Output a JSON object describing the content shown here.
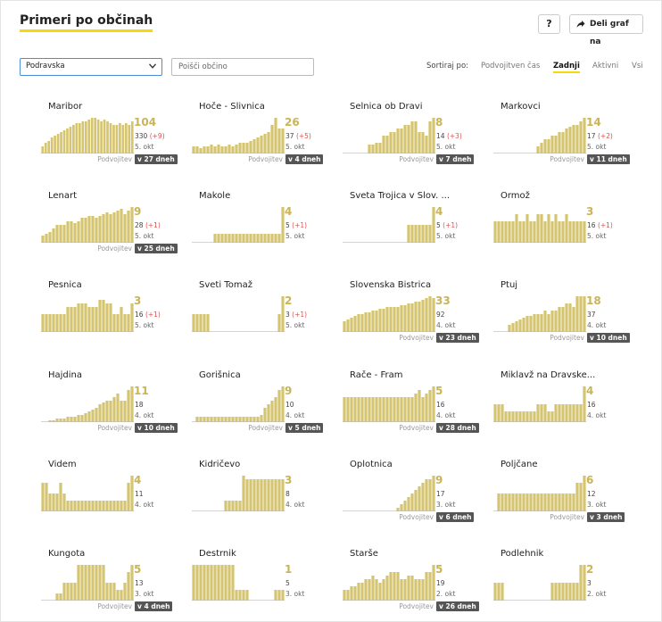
{
  "header": {
    "title": "Primeri po občinah",
    "help_label": "?",
    "share_label": "Deli graf na"
  },
  "filters": {
    "region_value": "Podravska",
    "search_placeholder": "Poišči občino"
  },
  "sort": {
    "label": "Sortiraj po:",
    "options": [
      "Podvojitven čas",
      "Zadnji",
      "Aktivni",
      "Vsi"
    ],
    "active": "Zadnji"
  },
  "colors": {
    "bar": "#d5c470",
    "accent_underline": "#f5d90a",
    "delta": "#d9534f",
    "badge": "#555555"
  },
  "cards": [
    {
      "name": "Maribor",
      "latest": "104",
      "total": "330",
      "delta": "(+9)",
      "date": "5. okt",
      "doubling_label": "Podvojitev",
      "doubling": "v 27 dneh",
      "bars": [
        0.2,
        0.3,
        0.35,
        0.45,
        0.5,
        0.55,
        0.6,
        0.65,
        0.7,
        0.75,
        0.8,
        0.85,
        0.85,
        0.9,
        0.9,
        0.95,
        1,
        1,
        0.95,
        0.9,
        0.95,
        0.9,
        0.85,
        0.8,
        0.8,
        0.85,
        0.8,
        0.85,
        0.8,
        0.9
      ]
    },
    {
      "name": "Hoče - Slivnica",
      "latest": "26",
      "total": "37",
      "delta": "(+5)",
      "date": "5. okt",
      "doubling_label": "Podvojitev",
      "doubling": "v 4 dneh",
      "bars": [
        0.2,
        0.2,
        0.15,
        0.2,
        0.2,
        0.25,
        0.2,
        0.25,
        0.2,
        0.2,
        0.25,
        0.2,
        0.25,
        0.3,
        0.3,
        0.3,
        0.35,
        0.4,
        0.45,
        0.5,
        0.55,
        0.6,
        0.8,
        1,
        0.7,
        0.7
      ]
    },
    {
      "name": "Selnica ob Dravi",
      "latest": "8",
      "total": "14",
      "delta": "(+3)",
      "date": "5. okt",
      "doubling_label": "Podvojitev",
      "doubling": "v 7 dneh",
      "bars": [
        0,
        0,
        0,
        0,
        0,
        0,
        0,
        0.25,
        0.25,
        0.3,
        0.3,
        0.5,
        0.5,
        0.6,
        0.6,
        0.7,
        0.7,
        0.8,
        0.8,
        0.9,
        0.9,
        0.6,
        0.6,
        0.5,
        0.9,
        1
      ]
    },
    {
      "name": "Markovci",
      "latest": "14",
      "total": "17",
      "delta": "(+2)",
      "date": "5. okt",
      "doubling_label": "Podvojitev",
      "doubling": "v 11 dneh",
      "bars": [
        0,
        0,
        0,
        0,
        0,
        0,
        0,
        0,
        0,
        0,
        0,
        0,
        0.2,
        0.3,
        0.4,
        0.4,
        0.5,
        0.5,
        0.6,
        0.6,
        0.7,
        0.75,
        0.8,
        0.8,
        0.9,
        1
      ]
    },
    {
      "name": "Lenart",
      "latest": "9",
      "total": "28",
      "delta": "(+1)",
      "date": "5. okt",
      "doubling_label": "Podvojitev",
      "doubling": "v 25 dneh",
      "bars": [
        0.2,
        0.25,
        0.3,
        0.4,
        0.5,
        0.5,
        0.5,
        0.6,
        0.6,
        0.55,
        0.6,
        0.7,
        0.7,
        0.75,
        0.75,
        0.7,
        0.75,
        0.8,
        0.85,
        0.8,
        0.85,
        0.9,
        0.95,
        0.8,
        0.9,
        1
      ]
    },
    {
      "name": "Makole",
      "latest": "4",
      "total": "5",
      "delta": "(+1)",
      "date": "5. okt",
      "doubling_label": "",
      "doubling": "",
      "bars": [
        0,
        0,
        0,
        0,
        0,
        0,
        0.25,
        0.25,
        0.25,
        0.25,
        0.25,
        0.25,
        0.25,
        0.25,
        0.25,
        0.25,
        0.25,
        0.25,
        0.25,
        0.25,
        0.25,
        0.25,
        0.25,
        0.25,
        0.25,
        1
      ]
    },
    {
      "name": "Sveta Trojica v Slov. ...",
      "latest": "4",
      "total": "5",
      "delta": "(+1)",
      "date": "5. okt",
      "doubling_label": "",
      "doubling": "",
      "bars": [
        0,
        0,
        0,
        0,
        0,
        0,
        0,
        0,
        0,
        0,
        0,
        0,
        0,
        0,
        0,
        0,
        0,
        0,
        0.5,
        0.5,
        0.5,
        0.5,
        0.5,
        0.5,
        0.5,
        1
      ]
    },
    {
      "name": "Ormož",
      "latest": "3",
      "total": "16",
      "delta": "(+1)",
      "date": "5. okt",
      "doubling_label": "",
      "doubling": "",
      "bars": [
        0.6,
        0.6,
        0.6,
        0.6,
        0.6,
        0.6,
        0.8,
        0.6,
        0.6,
        0.8,
        0.6,
        0.6,
        0.8,
        0.8,
        0.6,
        0.8,
        0.6,
        0.8,
        0.6,
        0.6,
        0.8,
        0.6,
        0.6,
        0.6,
        0.6,
        0.6
      ]
    },
    {
      "name": "Pesnica",
      "latest": "3",
      "total": "16",
      "delta": "(+1)",
      "date": "5. okt",
      "doubling_label": "",
      "doubling": "",
      "bars": [
        0.5,
        0.5,
        0.5,
        0.5,
        0.5,
        0.5,
        0.5,
        0.7,
        0.7,
        0.7,
        0.8,
        0.8,
        0.8,
        0.7,
        0.7,
        0.7,
        0.9,
        0.9,
        0.8,
        0.8,
        0.5,
        0.5,
        0.7,
        0.5,
        0.5,
        0.8
      ]
    },
    {
      "name": "Sveti Tomaž",
      "latest": "2",
      "total": "3",
      "delta": "(+1)",
      "date": "5. okt",
      "doubling_label": "",
      "doubling": "",
      "bars": [
        0.5,
        0.5,
        0.5,
        0.5,
        0.5,
        0,
        0,
        0,
        0,
        0,
        0,
        0,
        0,
        0,
        0,
        0,
        0,
        0,
        0,
        0,
        0,
        0,
        0,
        0,
        0.5,
        1
      ]
    },
    {
      "name": "Slovenska Bistrica",
      "latest": "33",
      "total": "92",
      "delta": "",
      "date": "4. okt",
      "doubling_label": "Podvojitev",
      "doubling": "v 23 dneh",
      "bars": [
        0.3,
        0.35,
        0.4,
        0.45,
        0.5,
        0.5,
        0.55,
        0.55,
        0.6,
        0.6,
        0.65,
        0.65,
        0.7,
        0.7,
        0.7,
        0.7,
        0.75,
        0.75,
        0.8,
        0.8,
        0.85,
        0.85,
        0.9,
        0.95,
        1,
        0.95
      ]
    },
    {
      "name": "Ptuj",
      "latest": "18",
      "total": "37",
      "delta": "",
      "date": "4. okt",
      "doubling_label": "Podvojitev",
      "doubling": "v 10 dneh",
      "bars": [
        0,
        0,
        0,
        0,
        0.2,
        0.25,
        0.3,
        0.35,
        0.4,
        0.45,
        0.45,
        0.5,
        0.5,
        0.5,
        0.6,
        0.5,
        0.6,
        0.6,
        0.7,
        0.7,
        0.8,
        0.8,
        0.7,
        1,
        1,
        1
      ]
    },
    {
      "name": "Hajdina",
      "latest": "11",
      "total": "18",
      "delta": "",
      "date": "4. okt",
      "doubling_label": "Podvojitev",
      "doubling": "v 10 dneh",
      "bars": [
        0,
        0,
        0.05,
        0.05,
        0.1,
        0.1,
        0.1,
        0.15,
        0.15,
        0.15,
        0.2,
        0.2,
        0.25,
        0.3,
        0.35,
        0.4,
        0.5,
        0.55,
        0.6,
        0.6,
        0.7,
        0.8,
        0.6,
        0.6,
        0.9,
        1
      ]
    },
    {
      "name": "Gorišnica",
      "latest": "9",
      "total": "10",
      "delta": "",
      "date": "4. okt",
      "doubling_label": "Podvojitev",
      "doubling": "v 5 dneh",
      "bars": [
        0,
        0.15,
        0.15,
        0.15,
        0.15,
        0.15,
        0.15,
        0.15,
        0.15,
        0.15,
        0.15,
        0.15,
        0.15,
        0.15,
        0.15,
        0.15,
        0.15,
        0.15,
        0.15,
        0.2,
        0.4,
        0.5,
        0.6,
        0.7,
        0.9,
        1
      ]
    },
    {
      "name": "Rače - Fram",
      "latest": "5",
      "total": "16",
      "delta": "",
      "date": "4. okt",
      "doubling_label": "Podvojitev",
      "doubling": "v 28 dneh",
      "bars": [
        0.7,
        0.7,
        0.7,
        0.7,
        0.7,
        0.7,
        0.7,
        0.7,
        0.7,
        0.7,
        0.7,
        0.7,
        0.7,
        0.7,
        0.7,
        0.7,
        0.7,
        0.7,
        0.7,
        0.7,
        0.8,
        0.9,
        0.7,
        0.8,
        0.9,
        1
      ]
    },
    {
      "name": "Miklavž na Dravske...",
      "latest": "4",
      "total": "16",
      "delta": "",
      "date": "4. okt",
      "doubling_label": "",
      "doubling": "",
      "bars": [
        0.5,
        0.5,
        0.5,
        0.3,
        0.3,
        0.3,
        0.3,
        0.3,
        0.3,
        0.3,
        0.3,
        0.3,
        0.5,
        0.5,
        0.5,
        0.3,
        0.3,
        0.5,
        0.5,
        0.5,
        0.5,
        0.5,
        0.5,
        0.5,
        0.5,
        1
      ]
    },
    {
      "name": "Videm",
      "latest": "4",
      "total": "11",
      "delta": "",
      "date": "4. okt",
      "doubling_label": "",
      "doubling": "",
      "bars": [
        0.8,
        0.8,
        0.5,
        0.5,
        0.5,
        0.8,
        0.5,
        0.3,
        0.3,
        0.3,
        0.3,
        0.3,
        0.3,
        0.3,
        0.3,
        0.3,
        0.3,
        0.3,
        0.3,
        0.3,
        0.3,
        0.3,
        0.3,
        0.3,
        0.8,
        1
      ]
    },
    {
      "name": "Kidričevo",
      "latest": "3",
      "total": "8",
      "delta": "",
      "date": "4. okt",
      "doubling_label": "",
      "doubling": "",
      "bars": [
        0,
        0,
        0,
        0,
        0,
        0,
        0,
        0,
        0,
        0.3,
        0.3,
        0.3,
        0.3,
        0.3,
        1,
        0.9,
        0.9,
        0.9,
        0.9,
        0.9,
        0.9,
        0.9,
        0.9,
        0.9,
        0.9,
        0.9
      ]
    },
    {
      "name": "Oplotnica",
      "latest": "9",
      "total": "17",
      "delta": "",
      "date": "3. okt",
      "doubling_label": "Podvojitev",
      "doubling": "v 6 dneh",
      "bars": [
        0,
        0,
        0,
        0,
        0,
        0,
        0,
        0,
        0,
        0,
        0,
        0,
        0,
        0,
        0,
        0.1,
        0.2,
        0.3,
        0.4,
        0.5,
        0.6,
        0.7,
        0.8,
        0.9,
        0.9,
        1
      ]
    },
    {
      "name": "Poljčane",
      "latest": "6",
      "total": "12",
      "delta": "",
      "date": "3. okt",
      "doubling_label": "Podvojitev",
      "doubling": "v 3 dneh",
      "bars": [
        0,
        0.5,
        0.5,
        0.5,
        0.5,
        0.5,
        0.5,
        0.5,
        0.5,
        0.5,
        0.5,
        0.5,
        0.5,
        0.5,
        0.5,
        0.5,
        0.5,
        0.5,
        0.5,
        0.5,
        0.5,
        0.5,
        0.5,
        0.8,
        0.8,
        1
      ]
    },
    {
      "name": "Kungota",
      "latest": "5",
      "total": "13",
      "delta": "",
      "date": "3. okt",
      "doubling_label": "Podvojitev",
      "doubling": "v 4 dneh",
      "bars": [
        0,
        0,
        0,
        0,
        0.2,
        0.2,
        0.5,
        0.5,
        0.5,
        0.5,
        1,
        1,
        1,
        1,
        1,
        1,
        1,
        1,
        0.5,
        0.5,
        0.5,
        0.3,
        0.3,
        0.5,
        0.8,
        1
      ]
    },
    {
      "name": "Destrnik",
      "latest": "1",
      "total": "5",
      "delta": "",
      "date": "3. okt",
      "doubling_label": "",
      "doubling": "",
      "bars": [
        1,
        1,
        1,
        1,
        1,
        1,
        1,
        1,
        1,
        1,
        1,
        1,
        0.3,
        0.3,
        0.3,
        0.3,
        0,
        0,
        0,
        0,
        0,
        0,
        0,
        0.3,
        0.3,
        0.3
      ]
    },
    {
      "name": "Starše",
      "latest": "5",
      "total": "19",
      "delta": "",
      "date": "2. okt",
      "doubling_label": "Podvojitev",
      "doubling": "v 26 dneh",
      "bars": [
        0.3,
        0.3,
        0.4,
        0.4,
        0.5,
        0.5,
        0.6,
        0.6,
        0.7,
        0.6,
        0.5,
        0.6,
        0.7,
        0.8,
        0.8,
        0.8,
        0.6,
        0.6,
        0.7,
        0.7,
        0.6,
        0.6,
        0.6,
        0.8,
        0.8,
        1
      ]
    },
    {
      "name": "Podlehnik",
      "latest": "2",
      "total": "3",
      "delta": "",
      "date": "2. okt",
      "doubling_label": "",
      "doubling": "",
      "bars": [
        0.5,
        0.5,
        0.5,
        0,
        0,
        0,
        0,
        0,
        0,
        0,
        0,
        0,
        0,
        0,
        0,
        0,
        0.5,
        0.5,
        0.5,
        0.5,
        0.5,
        0.5,
        0.5,
        0.5,
        1,
        1
      ]
    }
  ]
}
